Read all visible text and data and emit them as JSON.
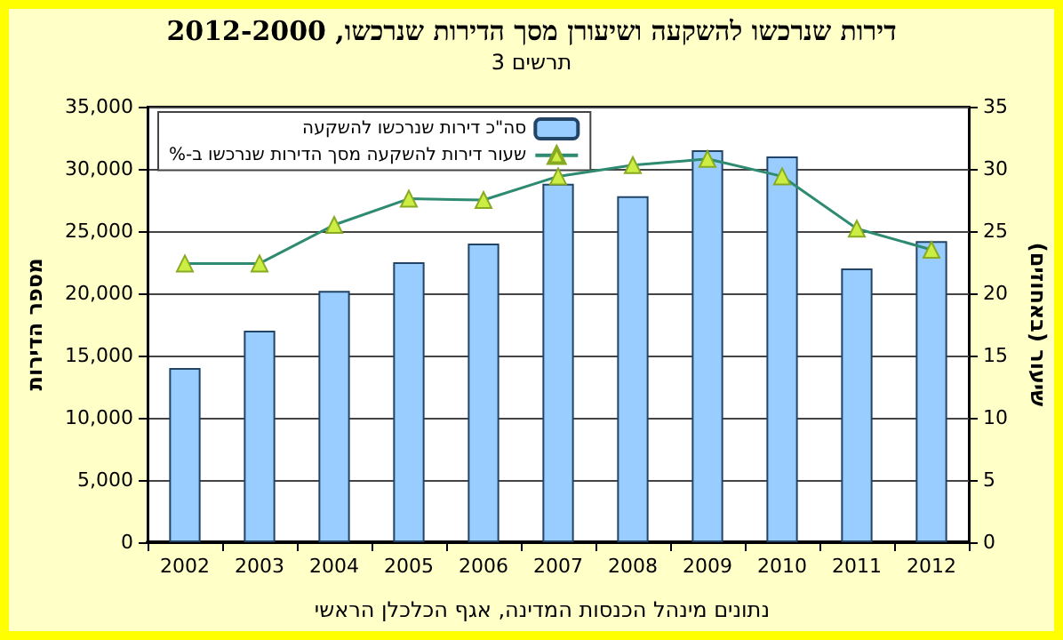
{
  "chart_data": {
    "type": "bar",
    "title": "דירות שנרכשו להשקעה ושיעורן מסך הדירות שנרכשו, 2012-2000",
    "subtitle": "תרשים 3",
    "ylabel": "מספר הדירות",
    "y2label": "שיעור (באחוזים)",
    "annotations": [
      "נתונים מינהל הכנסות המדינה, אגף הכלכלן הראשי"
    ],
    "categories": [
      "2002",
      "2003",
      "2004",
      "2005",
      "2006",
      "2007",
      "2008",
      "2009",
      "2010",
      "2011",
      "2012"
    ],
    "series": [
      {
        "name": "סה\"כ דירות שנרכשו להשקעה",
        "color": "#99ccff",
        "values": [
          14000,
          17000,
          20200,
          22500,
          24000,
          28800,
          27800,
          31500,
          31000,
          22000,
          24200
        ]
      },
      {
        "name": "שעור דירות להשקעה מסך הדירות שנרכשו ב-%",
        "type": "line",
        "axis": "y2",
        "color": "#2e8b72",
        "marker": "triangle",
        "values": [
          22.4,
          22.4,
          25.5,
          27.6,
          27.5,
          29.4,
          30.3,
          30.8,
          29.4,
          25.2,
          23.5
        ]
      }
    ],
    "ylim": [
      0,
      35000
    ],
    "yticks": [
      0,
      {
        "value": 5000,
        "label": "5,000"
      },
      {
        "value": 10000,
        "label": "10,000"
      },
      {
        "value": 15000,
        "label": "15,000"
      },
      {
        "value": 20000,
        "label": "20,000"
      },
      {
        "value": 25000,
        "label": "25,000"
      },
      {
        "value": 30000,
        "label": "30,000"
      },
      {
        "value": 35000,
        "label": "35,000"
      }
    ],
    "y2lim": [
      0,
      35
    ],
    "y2ticks": [
      0,
      5,
      10,
      15,
      20,
      25,
      30,
      35
    ],
    "grid": "y",
    "legend": "top left"
  }
}
